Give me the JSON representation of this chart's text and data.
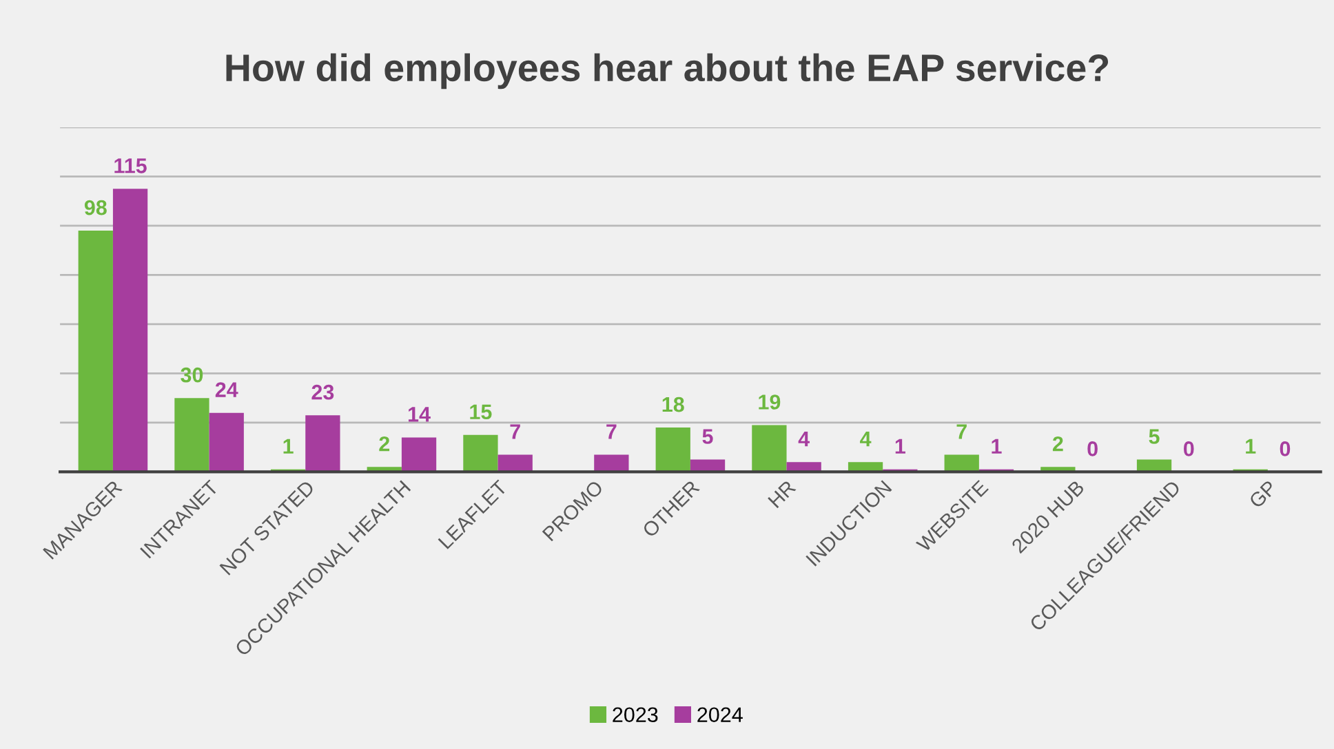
{
  "chart_data": {
    "type": "bar",
    "title": "How did employees hear about the EAP service?",
    "categories": [
      "MANAGER",
      "INTRANET",
      "NOT STATED",
      "OCCUPATIONAL HEALTH",
      "LEAFLET",
      "PROMO",
      "OTHER",
      "HR",
      "INDUCTION",
      "WEBSITE",
      "2020 HUB",
      "COLLEAGUE/FRIEND",
      "GP"
    ],
    "series": [
      {
        "name": "2023",
        "color": "#6cb83f",
        "values": [
          98,
          30,
          1,
          2,
          15,
          null,
          18,
          19,
          4,
          7,
          2,
          5,
          1
        ]
      },
      {
        "name": "2024",
        "color": "#a63d9e",
        "values": [
          115,
          24,
          23,
          14,
          7,
          7,
          5,
          4,
          1,
          1,
          0,
          0,
          0
        ]
      }
    ],
    "ylim": [
      0,
      140
    ],
    "yticks": [
      {
        "value": 0,
        "label": null
      },
      {
        "value": 20,
        "label": null
      },
      {
        "value": 40,
        "label": null
      },
      {
        "value": 60,
        "label": null
      },
      {
        "value": 80,
        "label": null
      },
      {
        "value": 100,
        "label": null
      },
      {
        "value": 120,
        "label": null
      },
      {
        "value": 140,
        "label": null
      }
    ],
    "grid": "y",
    "legend": "bottom",
    "data_labels": true,
    "tick_labels": "x"
  }
}
